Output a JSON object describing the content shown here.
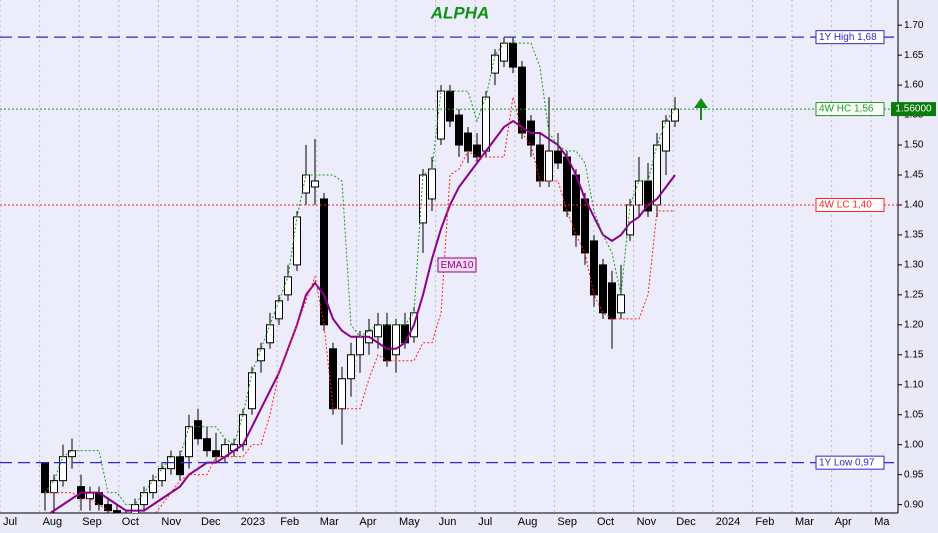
{
  "chart_data": {
    "type": "candlestick",
    "title": "ALPHA",
    "open": [
      0.97,
      0.92,
      0.94,
      0.98,
      0.93,
      0.91,
      0.92,
      0.9,
      0.89,
      0.88,
      0.88,
      0.9,
      0.92,
      0.94,
      0.96,
      0.98,
      0.98,
      1.04,
      1.01,
      0.99,
      0.98,
      0.99,
      1.0,
      1.06,
      1.14,
      1.17,
      1.21,
      1.25,
      1.3,
      1.42,
      1.43,
      1.41,
      1.16,
      1.06,
      1.11,
      1.15,
      1.17,
      1.18,
      1.2,
      1.15,
      1.2,
      1.18,
      1.37,
      1.41,
      1.51,
      1.59,
      1.55,
      1.52,
      1.5,
      1.49,
      1.62,
      1.64,
      1.67,
      1.63,
      1.54,
      1.5,
      1.44,
      1.49,
      1.48,
      1.45,
      1.41,
      1.34,
      1.3,
      1.27,
      1.22,
      1.35,
      1.4,
      1.44,
      1.4,
      1.49,
      1.54
    ],
    "high": [
      0.97,
      0.95,
      1.0,
      1.01,
      0.95,
      0.93,
      0.93,
      0.91,
      0.9,
      0.89,
      0.91,
      0.93,
      0.95,
      0.97,
      0.99,
      0.99,
      1.05,
      1.06,
      1.03,
      1.02,
      1.01,
      1.01,
      1.06,
      1.13,
      1.17,
      1.22,
      1.25,
      1.3,
      1.39,
      1.5,
      1.51,
      1.42,
      1.17,
      1.13,
      1.17,
      1.19,
      1.21,
      1.22,
      1.22,
      1.21,
      1.22,
      1.23,
      1.46,
      1.48,
      1.6,
      1.6,
      1.56,
      1.53,
      1.52,
      1.59,
      1.66,
      1.68,
      1.68,
      1.64,
      1.55,
      1.52,
      1.58,
      1.52,
      1.49,
      1.46,
      1.42,
      1.35,
      1.31,
      1.29,
      1.3,
      1.41,
      1.48,
      1.47,
      1.52,
      1.55,
      1.58
    ],
    "low": [
      0.89,
      0.88,
      0.93,
      0.96,
      0.89,
      0.89,
      0.89,
      0.88,
      0.87,
      0.86,
      0.87,
      0.89,
      0.91,
      0.93,
      0.95,
      0.94,
      0.96,
      1.0,
      0.98,
      0.97,
      0.97,
      0.98,
      0.99,
      1.05,
      1.12,
      1.16,
      1.2,
      1.24,
      1.29,
      1.4,
      1.4,
      1.19,
      1.05,
      1.0,
      1.08,
      1.12,
      1.15,
      1.16,
      1.13,
      1.12,
      1.16,
      1.17,
      1.32,
      1.39,
      1.5,
      1.53,
      1.48,
      1.47,
      1.47,
      1.48,
      1.6,
      1.63,
      1.62,
      1.51,
      1.48,
      1.43,
      1.43,
      1.46,
      1.38,
      1.33,
      1.3,
      1.23,
      1.21,
      1.16,
      1.21,
      1.34,
      1.38,
      1.38,
      1.38,
      1.45,
      1.53
    ],
    "close": [
      0.92,
      0.94,
      0.98,
      0.99,
      0.91,
      0.92,
      0.9,
      0.89,
      0.88,
      0.88,
      0.9,
      0.92,
      0.94,
      0.96,
      0.98,
      0.95,
      1.03,
      1.01,
      0.99,
      0.98,
      1.0,
      1.0,
      1.05,
      1.12,
      1.16,
      1.2,
      1.24,
      1.28,
      1.38,
      1.45,
      1.44,
      1.2,
      1.06,
      1.11,
      1.15,
      1.18,
      1.19,
      1.2,
      1.14,
      1.2,
      1.17,
      1.22,
      1.45,
      1.46,
      1.59,
      1.54,
      1.5,
      1.49,
      1.48,
      1.58,
      1.65,
      1.67,
      1.63,
      1.52,
      1.5,
      1.44,
      1.49,
      1.47,
      1.39,
      1.35,
      1.32,
      1.25,
      1.22,
      1.21,
      1.25,
      1.4,
      1.44,
      1.39,
      1.5,
      1.54,
      1.56
    ],
    "lines": [
      {
        "name": "EMA10",
        "color": "#8b008b",
        "values": [
          0.88,
          0.89,
          0.9,
          0.91,
          0.92,
          0.92,
          0.92,
          0.91,
          0.9,
          0.89,
          0.89,
          0.89,
          0.9,
          0.91,
          0.92,
          0.93,
          0.95,
          0.96,
          0.97,
          0.97,
          0.98,
          0.99,
          1.0,
          1.03,
          1.06,
          1.09,
          1.12,
          1.16,
          1.2,
          1.25,
          1.27,
          1.25,
          1.21,
          1.19,
          1.18,
          1.18,
          1.18,
          1.17,
          1.16,
          1.16,
          1.17,
          1.2,
          1.25,
          1.31,
          1.36,
          1.4,
          1.43,
          1.45,
          1.47,
          1.49,
          1.51,
          1.53,
          1.54,
          1.53,
          1.52,
          1.52,
          1.51,
          1.5,
          1.48,
          1.45,
          1.41,
          1.38,
          1.35,
          1.34,
          1.35,
          1.37,
          1.38,
          1.4,
          1.41,
          1.43,
          1.45
        ]
      },
      {
        "color": "#1a9a1a",
        "values": [
          0.92,
          0.94,
          0.98,
          0.99,
          0.99,
          0.99,
          0.99,
          0.92,
          0.92,
          0.9,
          0.9,
          0.92,
          0.94,
          0.96,
          0.98,
          0.98,
          1.03,
          1.03,
          1.03,
          1.03,
          1.01,
          1.0,
          1.05,
          1.12,
          1.16,
          1.2,
          1.24,
          1.28,
          1.38,
          1.45,
          1.45,
          1.45,
          1.45,
          1.44,
          1.2,
          1.18,
          1.19,
          1.2,
          1.2,
          1.2,
          1.2,
          1.22,
          1.45,
          1.46,
          1.59,
          1.59,
          1.59,
          1.59,
          1.54,
          1.58,
          1.65,
          1.67,
          1.67,
          1.67,
          1.67,
          1.63,
          1.52,
          1.5,
          1.49,
          1.49,
          1.47,
          1.39,
          1.35,
          1.32,
          1.25,
          1.4,
          1.44,
          1.44,
          1.5,
          1.54,
          1.56
        ]
      },
      {
        "color": "#ff2020",
        "values": [
          0.92,
          0.92,
          0.92,
          0.92,
          0.91,
          0.91,
          0.9,
          0.89,
          0.88,
          0.88,
          0.88,
          0.88,
          0.88,
          0.9,
          0.92,
          0.94,
          0.95,
          0.95,
          0.95,
          0.98,
          0.98,
          0.98,
          0.98,
          1.0,
          1.0,
          1.05,
          1.12,
          1.16,
          1.2,
          1.24,
          1.28,
          1.2,
          1.06,
          1.06,
          1.06,
          1.06,
          1.11,
          1.15,
          1.14,
          1.14,
          1.14,
          1.14,
          1.17,
          1.17,
          1.22,
          1.45,
          1.46,
          1.49,
          1.48,
          1.48,
          1.48,
          1.48,
          1.58,
          1.52,
          1.5,
          1.44,
          1.44,
          1.44,
          1.39,
          1.35,
          1.32,
          1.25,
          1.22,
          1.21,
          1.21,
          1.21,
          1.21,
          1.25,
          1.39,
          1.39,
          1.39
        ]
      }
    ],
    "levels": [
      {
        "label": "1Y High 1,68",
        "value": 1.68,
        "color": "#2a2ad0",
        "style": "dash"
      },
      {
        "label": "4W HC 1,56",
        "value": 1.56,
        "color": "#1a9a1a",
        "style": "dot"
      },
      {
        "label": "4W LC 1,40",
        "value": 1.4,
        "color": "#ff2020",
        "style": "dot"
      },
      {
        "label": "1Y Low 0,97",
        "value": 0.97,
        "color": "#2a2ad0",
        "style": "dash"
      }
    ],
    "last_price": {
      "value": 1.56,
      "label": "1.56000",
      "color": "#0a7a0a"
    },
    "ylim": [
      0.886,
      1.742
    ],
    "yticks": [
      {
        "value": 1.7,
        "label": "1.70"
      },
      {
        "value": 1.65,
        "label": "1.65"
      },
      {
        "value": 1.6,
        "label": "1.60"
      },
      {
        "value": 1.55,
        "label": "1.55"
      },
      {
        "value": 1.5,
        "label": "1.50"
      },
      {
        "value": 1.45,
        "label": "1.45"
      },
      {
        "value": 1.4,
        "label": "1.40"
      },
      {
        "value": 1.35,
        "label": "1.35"
      },
      {
        "value": 1.3,
        "label": "1.30"
      },
      {
        "value": 1.25,
        "label": "1.25"
      },
      {
        "value": 1.2,
        "label": "1.20"
      },
      {
        "value": 1.15,
        "label": "1.15"
      },
      {
        "value": 1.1,
        "label": "1.10"
      },
      {
        "value": 1.05,
        "label": "1.05"
      },
      {
        "value": 1.0,
        "label": "1.00"
      },
      {
        "value": 0.95,
        "label": "0.95"
      },
      {
        "value": 0.9,
        "label": "0.90"
      }
    ],
    "x_labels": [
      "Jul",
      "Aug",
      "Sep",
      "Oct",
      "Nov",
      "Dec",
      "2023",
      "Feb",
      "Mar",
      "Apr",
      "May",
      "Jun",
      "Jul",
      "Aug",
      "Sep",
      "Oct",
      "Nov",
      "Dec",
      "2024",
      "Feb",
      "Mar",
      "Apr",
      "Ma"
    ]
  }
}
